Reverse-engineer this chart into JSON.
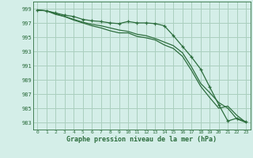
{
  "title": "Graphe pression niveau de la mer (hPa)",
  "background_color": "#d4eee8",
  "grid_color": "#aacfbe",
  "line_color": "#2d6e3e",
  "xlim": [
    -0.5,
    23.5
  ],
  "ylim": [
    982.0,
    1000.0
  ],
  "yticks": [
    983,
    985,
    987,
    989,
    991,
    993,
    995,
    997,
    999
  ],
  "xticks": [
    0,
    1,
    2,
    3,
    4,
    5,
    6,
    7,
    8,
    9,
    10,
    11,
    12,
    13,
    14,
    15,
    16,
    17,
    18,
    19,
    20,
    21,
    22,
    23
  ],
  "series_with_markers": [
    998.8,
    998.7,
    998.4,
    998.1,
    997.9,
    997.5,
    997.3,
    997.2,
    997.0,
    996.9,
    997.2,
    997.0,
    997.0,
    996.9,
    996.6,
    995.2,
    993.7,
    992.2,
    990.5,
    988.0,
    985.5,
    983.2,
    983.6,
    983.1
  ],
  "series2": [
    998.8,
    998.7,
    998.2,
    997.9,
    997.4,
    997.0,
    996.6,
    996.3,
    995.9,
    995.6,
    995.6,
    995.1,
    994.9,
    994.6,
    993.9,
    993.4,
    992.3,
    990.3,
    988.1,
    986.5,
    985.0,
    985.3,
    984.0,
    983.0
  ],
  "series3": [
    998.8,
    998.7,
    998.3,
    997.9,
    997.5,
    997.1,
    996.8,
    996.6,
    996.3,
    996.0,
    995.8,
    995.4,
    995.2,
    994.8,
    994.3,
    993.8,
    992.8,
    990.8,
    988.5,
    987.2,
    985.8,
    985.0,
    983.5,
    983.0
  ]
}
